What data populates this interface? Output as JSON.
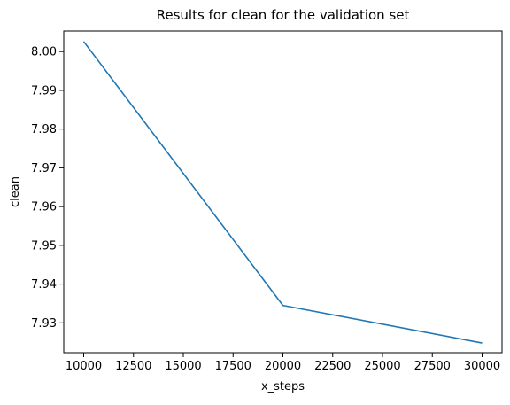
{
  "chart_data": {
    "type": "line",
    "title": "Results for clean for the validation set",
    "xlabel": "x_steps",
    "ylabel": "clean",
    "xlim": [
      9000,
      31000
    ],
    "ylim": [
      7.9223,
      8.0053
    ],
    "xticks": [
      10000,
      12500,
      15000,
      17500,
      20000,
      22500,
      25000,
      27500,
      30000
    ],
    "xtick_labels": [
      "10000",
      "12500",
      "15000",
      "17500",
      "20000",
      "22500",
      "25000",
      "27500",
      "30000"
    ],
    "yticks": [
      7.93,
      7.94,
      7.95,
      7.96,
      7.97,
      7.98,
      7.99,
      8.0
    ],
    "ytick_labels": [
      "7.93",
      "7.94",
      "7.95",
      "7.96",
      "7.97",
      "7.98",
      "7.99",
      "8.00"
    ],
    "grid": false,
    "legend": "none",
    "series": [
      {
        "color": "#1f77b4",
        "x": [
          10000,
          20000,
          30000
        ],
        "y": [
          8.0026,
          7.9345,
          7.9248
        ]
      }
    ]
  }
}
